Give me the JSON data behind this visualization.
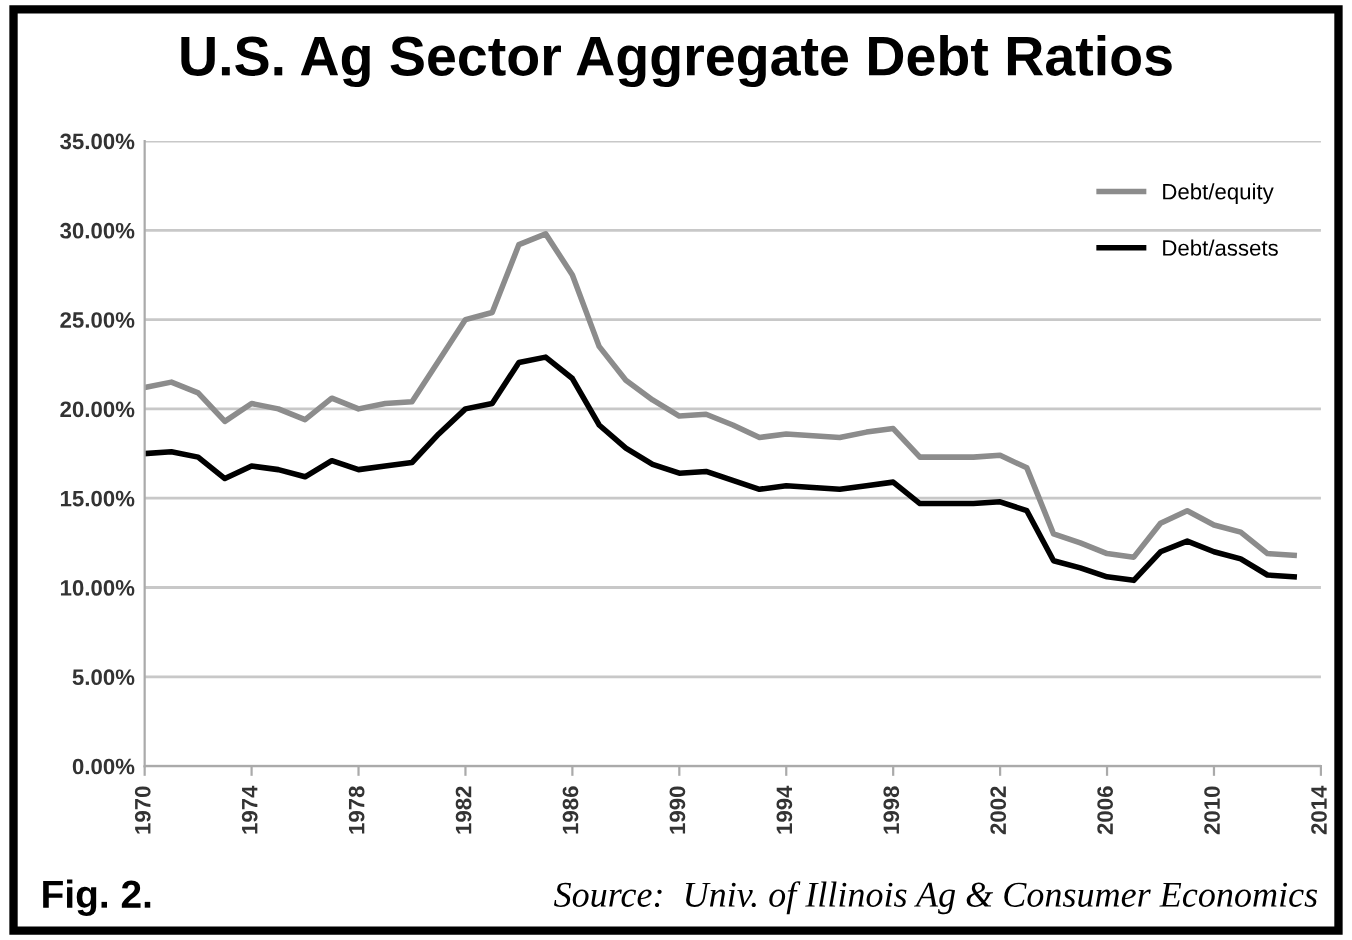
{
  "chart_data": {
    "type": "line",
    "title": "U.S. Ag Sector Aggregate Debt Ratios",
    "x": [
      1970,
      1971,
      1972,
      1973,
      1974,
      1975,
      1976,
      1977,
      1978,
      1979,
      1980,
      1981,
      1982,
      1983,
      1984,
      1985,
      1986,
      1987,
      1988,
      1989,
      1990,
      1991,
      1992,
      1993,
      1994,
      1995,
      1996,
      1997,
      1998,
      1999,
      2000,
      2001,
      2002,
      2003,
      2004,
      2005,
      2006,
      2007,
      2008,
      2009,
      2010,
      2011,
      2012,
      2013
    ],
    "series": [
      {
        "name": "Debt/equity",
        "color": "#8c8c8c",
        "values": [
          21.2,
          21.5,
          20.9,
          19.3,
          20.3,
          20.0,
          19.4,
          20.6,
          20.0,
          20.3,
          20.4,
          22.7,
          25.0,
          25.4,
          29.2,
          29.8,
          27.5,
          23.5,
          21.6,
          20.5,
          19.6,
          19.7,
          19.1,
          18.4,
          18.6,
          18.5,
          18.4,
          18.7,
          18.9,
          17.3,
          17.3,
          17.3,
          17.4,
          16.7,
          13.0,
          12.5,
          11.9,
          11.7,
          13.6,
          14.3,
          13.5,
          13.1,
          11.9,
          11.8
        ]
      },
      {
        "name": "Debt/assets",
        "color": "#000000",
        "values": [
          17.5,
          17.6,
          17.3,
          16.1,
          16.8,
          16.6,
          16.2,
          17.1,
          16.6,
          16.8,
          17.0,
          18.6,
          20.0,
          20.3,
          22.6,
          22.9,
          21.7,
          19.1,
          17.8,
          16.9,
          16.4,
          16.5,
          16.0,
          15.5,
          15.7,
          15.6,
          15.5,
          15.7,
          15.9,
          14.7,
          14.7,
          14.7,
          14.8,
          14.3,
          11.5,
          11.1,
          10.6,
          10.4,
          12.0,
          12.6,
          12.0,
          11.6,
          10.7,
          10.6
        ]
      }
    ],
    "xlim": [
      1970,
      2014
    ],
    "xticks": [
      1970,
      1974,
      1978,
      1982,
      1986,
      1990,
      1994,
      1998,
      2002,
      2006,
      2010,
      2014
    ],
    "ylim": [
      0,
      35
    ],
    "yticks": [
      {
        "value": 0,
        "label": "0.00%"
      },
      {
        "value": 5,
        "label": "5.00%"
      },
      {
        "value": 10,
        "label": "10.00%"
      },
      {
        "value": 15,
        "label": "15.00%"
      },
      {
        "value": 20,
        "label": "20.00%"
      },
      {
        "value": 25,
        "label": "25.00%"
      },
      {
        "value": 30,
        "label": "30.00%"
      },
      {
        "value": 35,
        "label": "35.00%"
      }
    ],
    "grid": "y",
    "legend": "top right",
    "marker": "none",
    "line_style": "solid",
    "annotations": [
      "Fig. 2.",
      "Source:  Univ. of Illinois Ag & Consumer Economics"
    ]
  }
}
